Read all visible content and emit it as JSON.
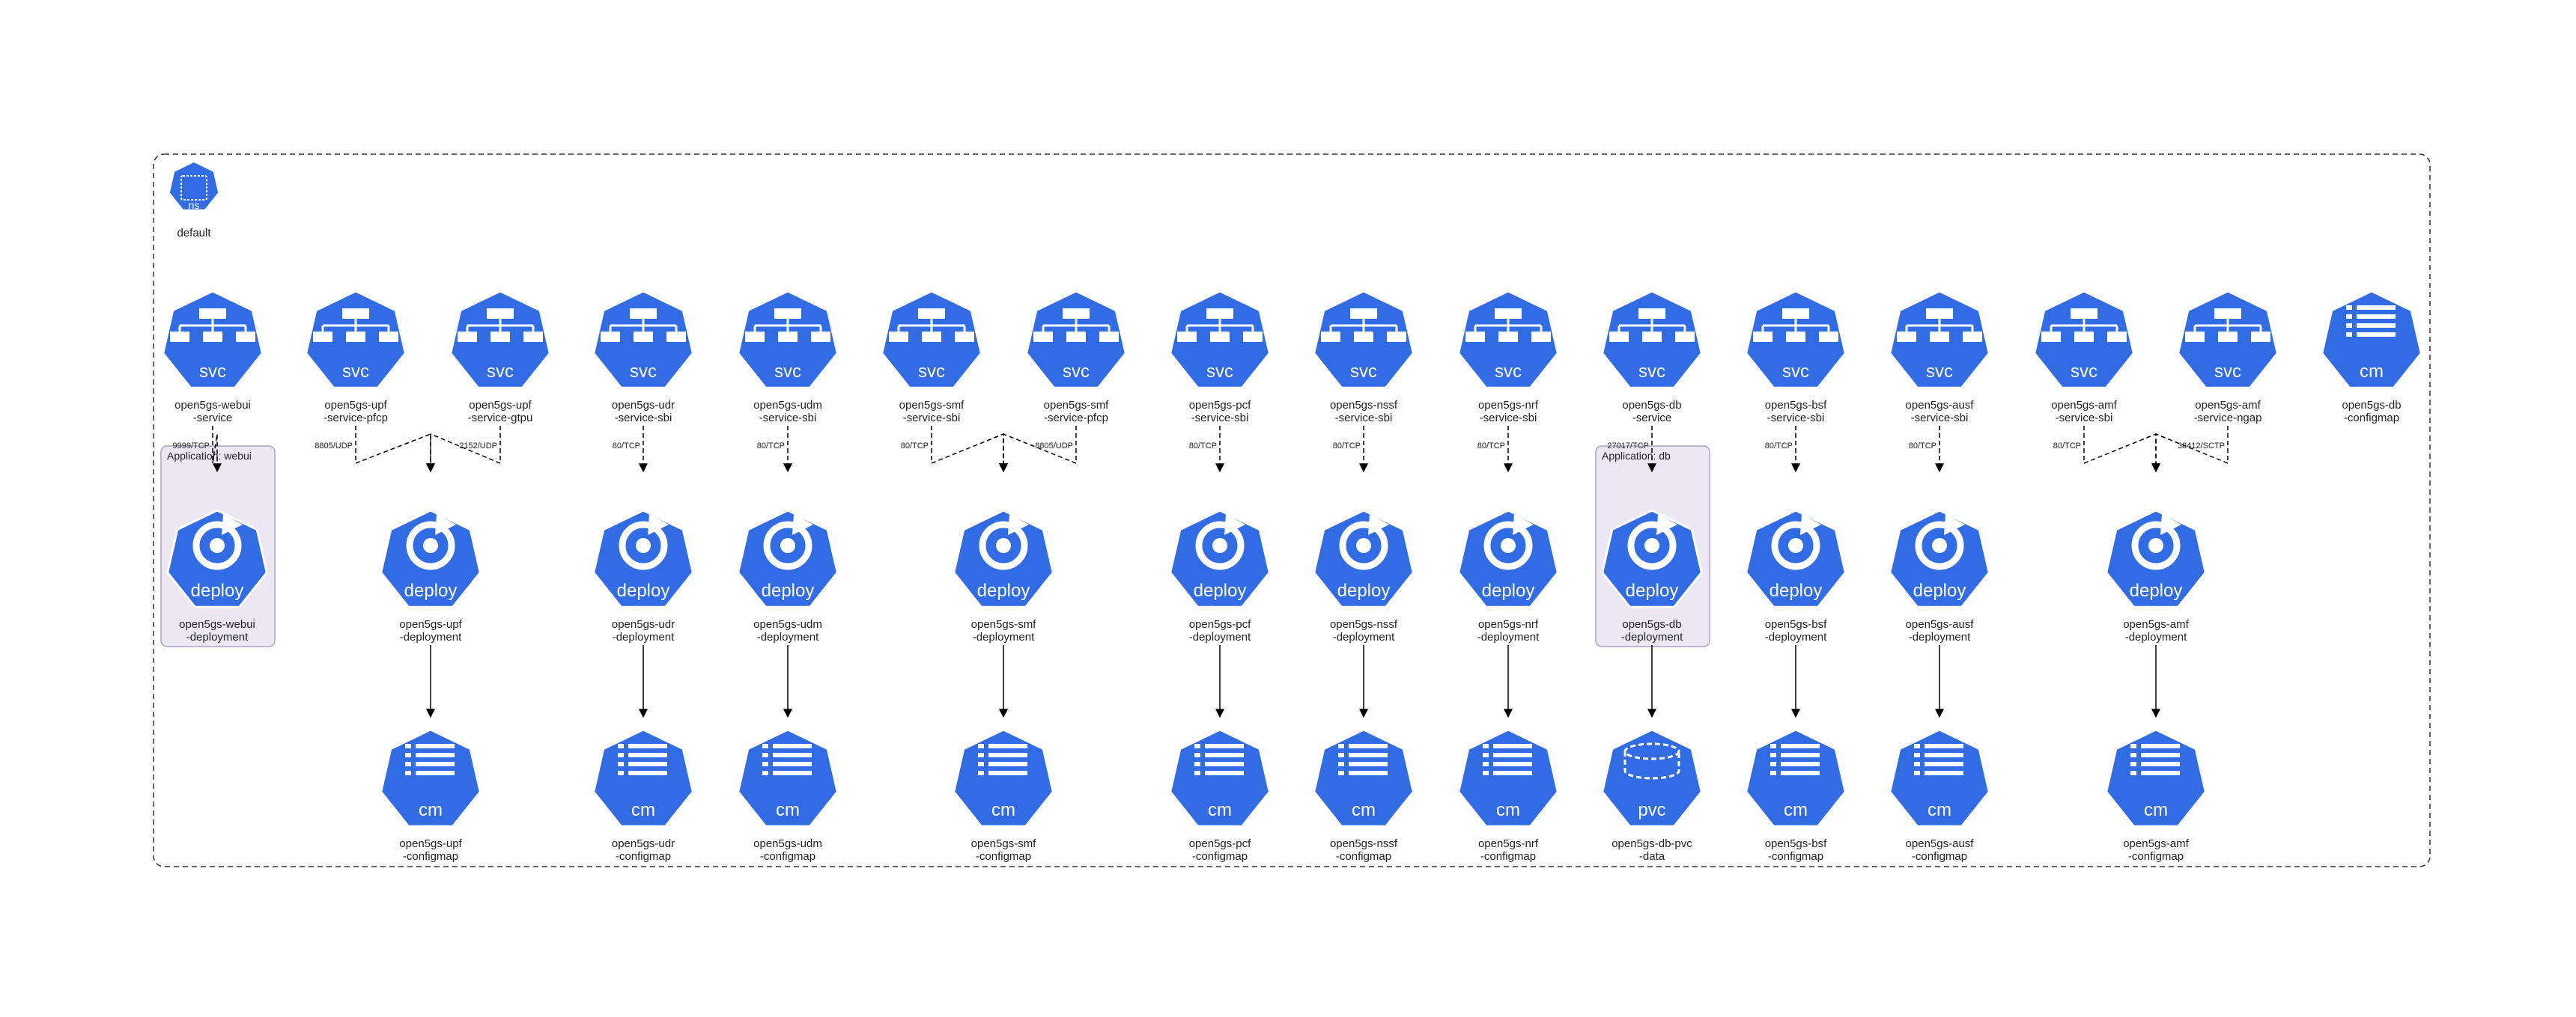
{
  "namespace": {
    "kind": "ns",
    "name": "default"
  },
  "colors": {
    "node_fill": "#326ce5",
    "icon": "#ffffff",
    "group_fill": "#ebe8f4",
    "group_stroke": "#a9a3c2",
    "edge": "#000000"
  },
  "groups": [
    {
      "id": "g-webui",
      "label": "Application: webui"
    },
    {
      "id": "g-db",
      "label": "Application: db"
    }
  ],
  "nodes": [
    {
      "id": "svc-webui",
      "kind": "svc",
      "line1": "open5gs-webui",
      "line2": "-service"
    },
    {
      "id": "svc-upf-pfcp",
      "kind": "svc",
      "line1": "open5gs-upf",
      "line2": "-service-pfcp"
    },
    {
      "id": "svc-upf-gtpu",
      "kind": "svc",
      "line1": "open5gs-upf",
      "line2": "-service-gtpu"
    },
    {
      "id": "svc-udr",
      "kind": "svc",
      "line1": "open5gs-udr",
      "line2": "-service-sbi"
    },
    {
      "id": "svc-udm",
      "kind": "svc",
      "line1": "open5gs-udm",
      "line2": "-service-sbi"
    },
    {
      "id": "svc-smf-sbi",
      "kind": "svc",
      "line1": "open5gs-smf",
      "line2": "-service-sbi"
    },
    {
      "id": "svc-smf-pfcp",
      "kind": "svc",
      "line1": "open5gs-smf",
      "line2": "-service-pfcp"
    },
    {
      "id": "svc-pcf",
      "kind": "svc",
      "line1": "open5gs-pcf",
      "line2": "-service-sbi"
    },
    {
      "id": "svc-nssf",
      "kind": "svc",
      "line1": "open5gs-nssf",
      "line2": "-service-sbi"
    },
    {
      "id": "svc-nrf",
      "kind": "svc",
      "line1": "open5gs-nrf",
      "line2": "-service-sbi"
    },
    {
      "id": "svc-db",
      "kind": "svc",
      "line1": "open5gs-db",
      "line2": "-service"
    },
    {
      "id": "svc-bsf",
      "kind": "svc",
      "line1": "open5gs-bsf",
      "line2": "-service-sbi"
    },
    {
      "id": "svc-ausf",
      "kind": "svc",
      "line1": "open5gs-ausf",
      "line2": "-service-sbi"
    },
    {
      "id": "svc-amf-sbi",
      "kind": "svc",
      "line1": "open5gs-amf",
      "line2": "-service-sbi"
    },
    {
      "id": "svc-amf-ngap",
      "kind": "svc",
      "line1": "open5gs-amf",
      "line2": "-service-ngap"
    },
    {
      "id": "cm-db",
      "kind": "cm",
      "line1": "open5gs-db",
      "line2": "-configmap"
    },
    {
      "id": "dep-webui",
      "kind": "deploy",
      "line1": "open5gs-webui",
      "line2": "-deployment"
    },
    {
      "id": "dep-upf",
      "kind": "deploy",
      "line1": "open5gs-upf",
      "line2": "-deployment"
    },
    {
      "id": "dep-udr",
      "kind": "deploy",
      "line1": "open5gs-udr",
      "line2": "-deployment"
    },
    {
      "id": "dep-udm",
      "kind": "deploy",
      "line1": "open5gs-udm",
      "line2": "-deployment"
    },
    {
      "id": "dep-smf",
      "kind": "deploy",
      "line1": "open5gs-smf",
      "line2": "-deployment"
    },
    {
      "id": "dep-pcf",
      "kind": "deploy",
      "line1": "open5gs-pcf",
      "line2": "-deployment"
    },
    {
      "id": "dep-nssf",
      "kind": "deploy",
      "line1": "open5gs-nssf",
      "line2": "-deployment"
    },
    {
      "id": "dep-nrf",
      "kind": "deploy",
      "line1": "open5gs-nrf",
      "line2": "-deployment"
    },
    {
      "id": "dep-db",
      "kind": "deploy",
      "line1": "open5gs-db",
      "line2": "-deployment"
    },
    {
      "id": "dep-bsf",
      "kind": "deploy",
      "line1": "open5gs-bsf",
      "line2": "-deployment"
    },
    {
      "id": "dep-ausf",
      "kind": "deploy",
      "line1": "open5gs-ausf",
      "line2": "-deployment"
    },
    {
      "id": "dep-amf",
      "kind": "deploy",
      "line1": "open5gs-amf",
      "line2": "-deployment"
    },
    {
      "id": "cm-upf",
      "kind": "cm",
      "line1": "open5gs-upf",
      "line2": "-configmap"
    },
    {
      "id": "cm-udr",
      "kind": "cm",
      "line1": "open5gs-udr",
      "line2": "-configmap"
    },
    {
      "id": "cm-udm",
      "kind": "cm",
      "line1": "open5gs-udm",
      "line2": "-configmap"
    },
    {
      "id": "cm-smf",
      "kind": "cm",
      "line1": "open5gs-smf",
      "line2": "-configmap"
    },
    {
      "id": "cm-pcf",
      "kind": "cm",
      "line1": "open5gs-pcf",
      "line2": "-configmap"
    },
    {
      "id": "cm-nssf",
      "kind": "cm",
      "line1": "open5gs-nssf",
      "line2": "-configmap"
    },
    {
      "id": "cm-nrf",
      "kind": "cm",
      "line1": "open5gs-nrf",
      "line2": "-configmap"
    },
    {
      "id": "pvc-db",
      "kind": "pvc",
      "line1": "open5gs-db-pvc",
      "line2": "-data"
    },
    {
      "id": "cm-bsf",
      "kind": "cm",
      "line1": "open5gs-bsf",
      "line2": "-configmap"
    },
    {
      "id": "cm-ausf",
      "kind": "cm",
      "line1": "open5gs-ausf",
      "line2": "-configmap"
    },
    {
      "id": "cm-amf",
      "kind": "cm",
      "line1": "open5gs-amf",
      "line2": "-configmap"
    }
  ],
  "edges": [
    {
      "from": "svc-webui",
      "to": "dep-webui",
      "label": "9999/TCP",
      "style": "dashed"
    },
    {
      "from": "svc-upf-pfcp",
      "to": "dep-upf",
      "label": "8805/UDP",
      "style": "dashed"
    },
    {
      "from": "svc-upf-gtpu",
      "to": "dep-upf",
      "label": "2152/UDP",
      "style": "dashed"
    },
    {
      "from": "svc-udr",
      "to": "dep-udr",
      "label": "80/TCP",
      "style": "dashed"
    },
    {
      "from": "svc-udm",
      "to": "dep-udm",
      "label": "80/TCP",
      "style": "dashed"
    },
    {
      "from": "svc-smf-sbi",
      "to": "dep-smf",
      "label": "80/TCP",
      "style": "dashed"
    },
    {
      "from": "svc-smf-pfcp",
      "to": "dep-smf",
      "label": "8805/UDP",
      "style": "dashed"
    },
    {
      "from": "svc-pcf",
      "to": "dep-pcf",
      "label": "80/TCP",
      "style": "dashed"
    },
    {
      "from": "svc-nssf",
      "to": "dep-nssf",
      "label": "80/TCP",
      "style": "dashed"
    },
    {
      "from": "svc-nrf",
      "to": "dep-nrf",
      "label": "80/TCP",
      "style": "dashed"
    },
    {
      "from": "svc-db",
      "to": "dep-db",
      "label": "27017/TCP",
      "style": "dashed"
    },
    {
      "from": "svc-bsf",
      "to": "dep-bsf",
      "label": "80/TCP",
      "style": "dashed"
    },
    {
      "from": "svc-ausf",
      "to": "dep-ausf",
      "label": "80/TCP",
      "style": "dashed"
    },
    {
      "from": "svc-amf-sbi",
      "to": "dep-amf",
      "label": "80/TCP",
      "style": "dashed"
    },
    {
      "from": "svc-amf-ngap",
      "to": "dep-amf",
      "label": "38412/SCTP",
      "style": "dashed"
    },
    {
      "from": "dep-upf",
      "to": "cm-upf",
      "label": "",
      "style": "solid"
    },
    {
      "from": "dep-udr",
      "to": "cm-udr",
      "label": "",
      "style": "solid"
    },
    {
      "from": "dep-udm",
      "to": "cm-udm",
      "label": "",
      "style": "solid"
    },
    {
      "from": "dep-smf",
      "to": "cm-smf",
      "label": "",
      "style": "solid"
    },
    {
      "from": "dep-pcf",
      "to": "cm-pcf",
      "label": "",
      "style": "solid"
    },
    {
      "from": "dep-nssf",
      "to": "cm-nssf",
      "label": "",
      "style": "solid"
    },
    {
      "from": "dep-nrf",
      "to": "cm-nrf",
      "label": "",
      "style": "solid"
    },
    {
      "from": "dep-db",
      "to": "pvc-db",
      "label": "",
      "style": "solid"
    },
    {
      "from": "dep-bsf",
      "to": "cm-bsf",
      "label": "",
      "style": "solid"
    },
    {
      "from": "dep-ausf",
      "to": "cm-ausf",
      "label": "",
      "style": "solid"
    },
    {
      "from": "dep-amf",
      "to": "cm-amf",
      "label": "",
      "style": "solid"
    }
  ]
}
